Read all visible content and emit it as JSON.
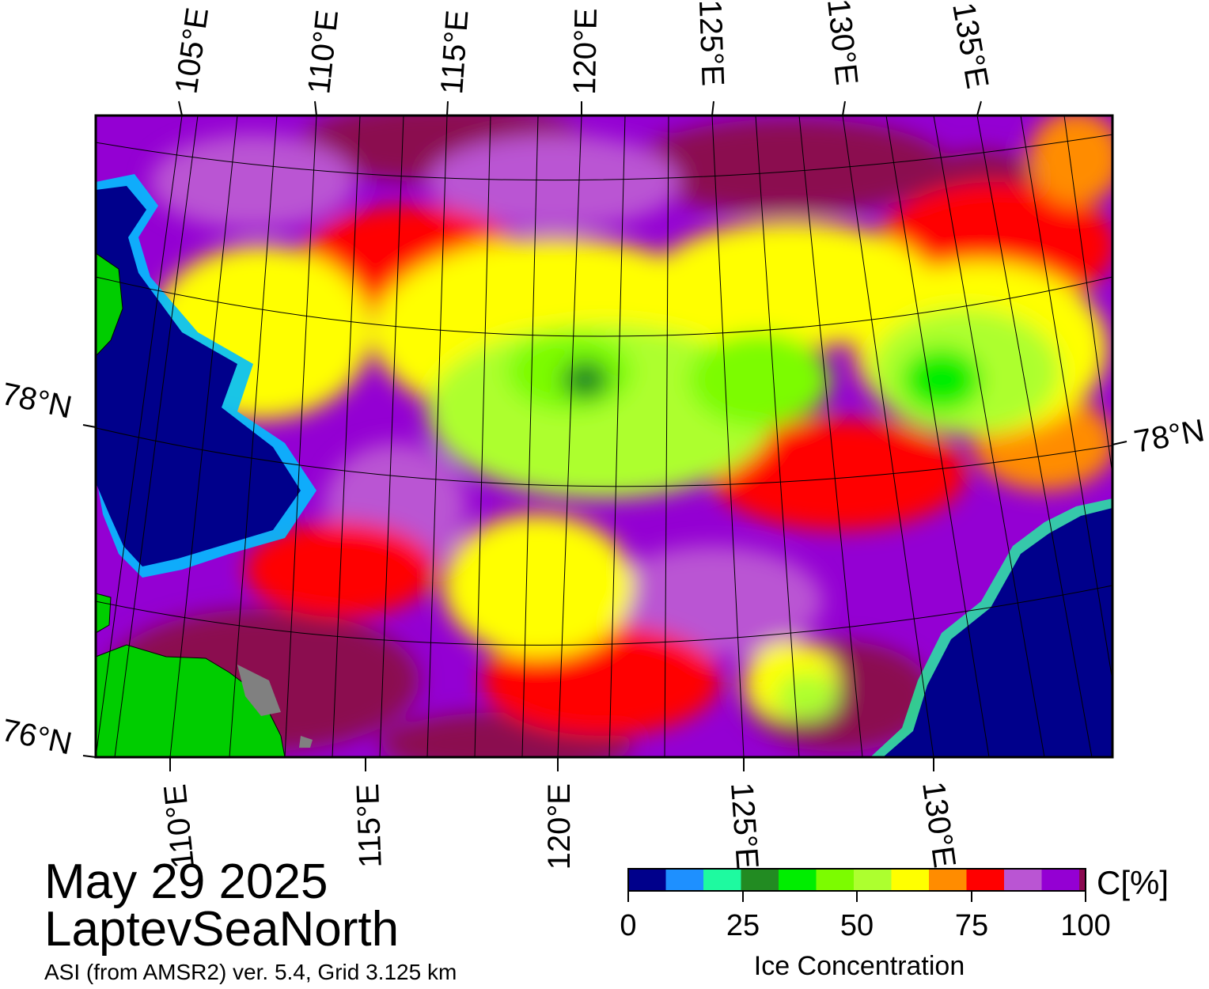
{
  "map": {
    "title_date": "May 29 2025",
    "region": "LaptevSeaNorth",
    "source": "ASI (from AMSR2) ver. 5.4,  Grid 3.125 km",
    "top_longitude_labels": [
      "105°E",
      "110°E",
      "115°E",
      "120°E",
      "125°E",
      "130°E",
      "135°E"
    ],
    "bottom_longitude_labels": [
      "110°E",
      "115°E",
      "120°E",
      "125°E",
      "130°E"
    ],
    "left_latitude_labels": [
      "78°N",
      "76°N"
    ],
    "right_latitude_labels": [
      "78°N"
    ],
    "colorbar": {
      "title": "Ice Concentration",
      "unit": "C[%]",
      "ticks": [
        "0",
        "25",
        "50",
        "75",
        "100"
      ],
      "colors": [
        "#00008b",
        "#1e90ff",
        "#1efaa0",
        "#228b22",
        "#00ee00",
        "#7cfc00",
        "#adff2f",
        "#ffff00",
        "#ff8c00",
        "#ff0000",
        "#ba55d3",
        "#9400d3",
        "#8b0a50"
      ]
    },
    "colors": {
      "open_water": "#00008b",
      "land": "#00cd00",
      "land_mask": "#808080",
      "frame": "#000000"
    }
  }
}
